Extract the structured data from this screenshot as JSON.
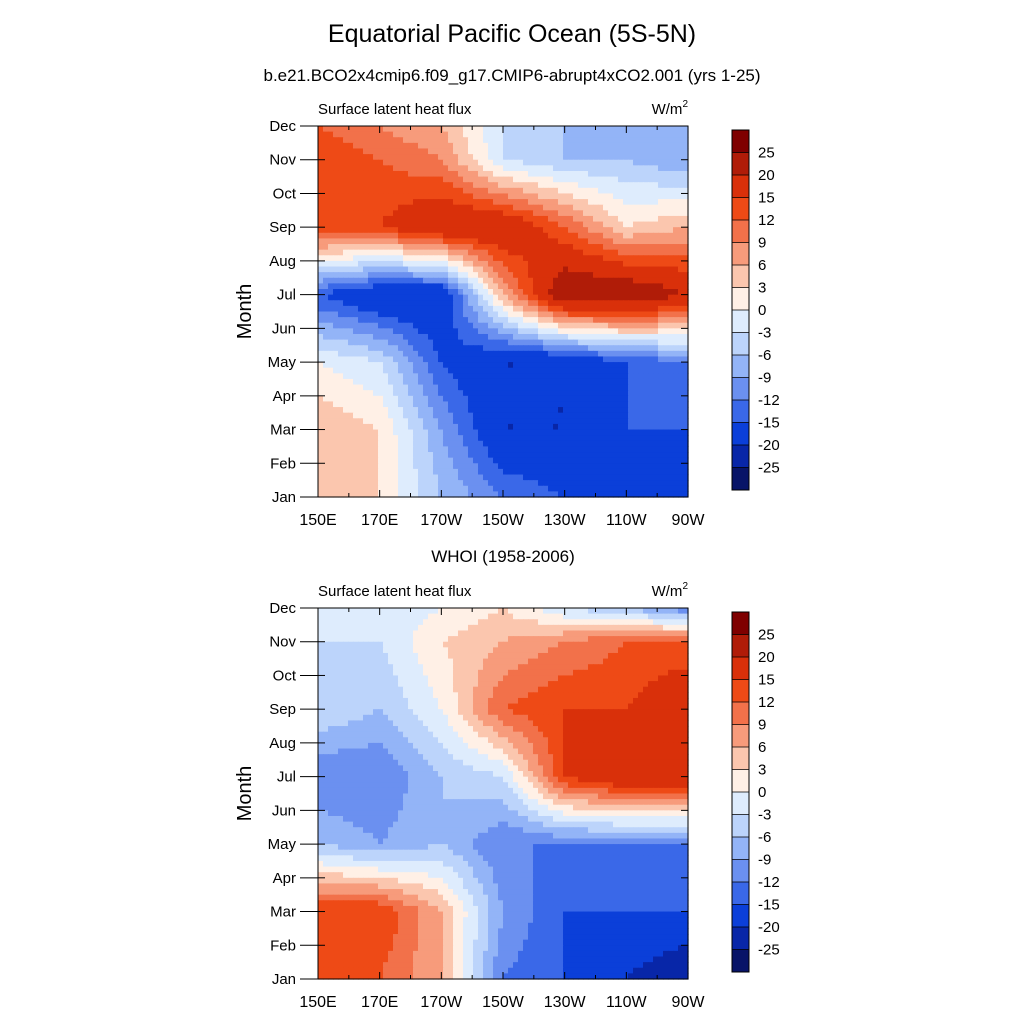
{
  "title": "Equatorial Pacific Ocean (5S-5N)",
  "subtitle": "b.e21.BCO2x4cmip6.f09_g17.CMIP6-abrupt4xCO2.001 (yrs 1-25)",
  "colorbar": {
    "labels": [
      "25",
      "20",
      "15",
      "12",
      "9",
      "6",
      "3",
      "0",
      "-3",
      "-6",
      "-9",
      "-12",
      "-15",
      "-20",
      "-25"
    ],
    "colors": [
      "#7f0000",
      "#b01c08",
      "#d9300a",
      "#ee4a16",
      "#f2714a",
      "#f79b7b",
      "#fbc6ae",
      "#fff0e6",
      "#deecfd",
      "#bcd4fb",
      "#93b4f7",
      "#6b90f0",
      "#3a68e8",
      "#0b3fd9",
      "#0826a8",
      "#081468"
    ]
  },
  "chart_data": [
    {
      "type": "heatmap",
      "panel_title": "",
      "left_label": "Surface latent heat flux",
      "units": "W/m2",
      "ylabel": "Month",
      "x_ticks": [
        "150E",
        "170E",
        "170W",
        "150W",
        "130W",
        "110W",
        "90W"
      ],
      "y_ticks": [
        "Jan",
        "Feb",
        "Mar",
        "Apr",
        "May",
        "Jun",
        "Jul",
        "Aug",
        "Sep",
        "Oct",
        "Nov",
        "Dec"
      ],
      "x_range": [
        150,
        270
      ],
      "y_range": [
        1,
        12
      ],
      "grid_x": [
        150,
        170,
        190,
        210,
        230,
        250,
        270
      ],
      "grid_y": [
        1,
        3,
        5,
        7,
        9,
        11,
        12
      ],
      "values": [
        [
          6,
          3,
          -6,
          -12,
          -15,
          -15,
          -20
        ],
        [
          6,
          3,
          -9,
          -20,
          -20,
          -15,
          -15
        ],
        [
          0,
          -3,
          -15,
          -20,
          -20,
          -15,
          -12
        ],
        [
          -15,
          -20,
          -20,
          6,
          25,
          25,
          20
        ],
        [
          15,
          15,
          20,
          20,
          12,
          3,
          6
        ],
        [
          15,
          12,
          9,
          -3,
          -6,
          -6,
          -9
        ],
        [
          12,
          9,
          6,
          -3,
          -6,
          -9,
          -9
        ]
      ]
    },
    {
      "type": "heatmap",
      "panel_title": "WHOI (1958-2006)",
      "left_label": "Surface latent heat flux",
      "units": "W/m2",
      "ylabel": "Month",
      "x_ticks": [
        "150E",
        "170E",
        "170W",
        "150W",
        "130W",
        "110W",
        "90W"
      ],
      "y_ticks": [
        "Jan",
        "Feb",
        "Mar",
        "Apr",
        "May",
        "Jun",
        "Jul",
        "Aug",
        "Sep",
        "Oct",
        "Nov",
        "Dec"
      ],
      "x_range": [
        150,
        270
      ],
      "y_range": [
        1,
        12
      ],
      "grid_x": [
        150,
        170,
        190,
        210,
        230,
        250,
        270
      ],
      "grid_y": [
        1,
        3,
        5,
        7,
        9,
        11,
        12
      ],
      "values": [
        [
          15,
          12,
          6,
          -12,
          -15,
          -20,
          -25
        ],
        [
          15,
          15,
          6,
          -9,
          -15,
          -15,
          -15
        ],
        [
          -6,
          -9,
          -6,
          -12,
          -12,
          -12,
          -12
        ],
        [
          -12,
          -12,
          -6,
          -3,
          15,
          20,
          20
        ],
        [
          -3,
          -6,
          0,
          12,
          15,
          15,
          20
        ],
        [
          -3,
          -3,
          3,
          6,
          9,
          12,
          12
        ],
        [
          -3,
          -3,
          0,
          3,
          -3,
          -6,
          -12
        ]
      ]
    }
  ]
}
